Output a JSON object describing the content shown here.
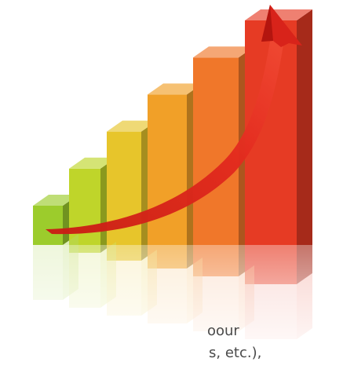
{
  "text_fragments": [
    "oour",
    "s, etc.),"
  ],
  "illustration": {
    "subject": "rising-bar-chart-with-arrow",
    "bar_levels": [
      1,
      2,
      3,
      4,
      5,
      6
    ],
    "bar_colors": [
      "#9ccc2c",
      "#bfd52a",
      "#e7c52b",
      "#f1a028",
      "#f0772a",
      "#e63b24"
    ],
    "arrow_color": "#e1261c"
  }
}
